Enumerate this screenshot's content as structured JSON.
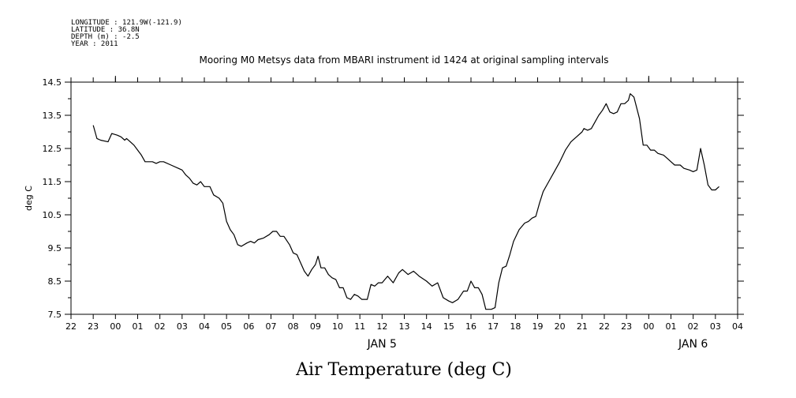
{
  "header": {
    "meta_lines": [
      "LONGITUDE : 121.9W(-121.9)",
      "LATITUDE : 36.8N",
      "DEPTH (m) : -2.5",
      "YEAR : 2011"
    ],
    "title": "Mooring M0 Metsys data from MBARI instrument id 1424 at original sampling intervals"
  },
  "footer": {
    "label": "Air Temperature (deg C)"
  },
  "chart_data": {
    "type": "line",
    "title": "Mooring M0 Metsys data from MBARI instrument id 1424 at original sampling intervals",
    "xlabel": "",
    "ylabel": "deg C",
    "xlim": [
      "2011-01-04T22:00",
      "2011-01-06T04:00"
    ],
    "ylim": [
      7.5,
      14.5
    ],
    "x_tick_labels": [
      "22",
      "23",
      "00",
      "01",
      "02",
      "03",
      "04",
      "05",
      "06",
      "07",
      "08",
      "09",
      "10",
      "11",
      "12",
      "13",
      "14",
      "15",
      "16",
      "17",
      "18",
      "19",
      "20",
      "21",
      "22",
      "23",
      "00",
      "01",
      "02",
      "03",
      "04"
    ],
    "date_labels": [
      "JAN 5",
      "JAN 6"
    ],
    "y_ticks": [
      7.5,
      8.5,
      9.5,
      10.5,
      11.5,
      12.5,
      13.5,
      14.5
    ],
    "y_tick_labels": [
      "7.5",
      "8.5",
      "9.5",
      "10.5",
      "11.5",
      "12.5",
      "13.5",
      "14.5"
    ],
    "grid": false,
    "series": [
      {
        "name": "",
        "points": [
          [
            "2011-01-04T23:00",
            13.2
          ],
          [
            "2011-01-04T23:10",
            12.8
          ],
          [
            "2011-01-04T23:20",
            12.75
          ],
          [
            "2011-01-04T23:40",
            12.7
          ],
          [
            "2011-01-04T23:50",
            12.95
          ],
          [
            "2011-01-05T00:05",
            12.9
          ],
          [
            "2011-01-05T00:15",
            12.85
          ],
          [
            "2011-01-05T00:25",
            12.75
          ],
          [
            "2011-01-05T00:30",
            12.8
          ],
          [
            "2011-01-05T00:40",
            12.7
          ],
          [
            "2011-01-05T00:50",
            12.6
          ],
          [
            "2011-01-05T01:00",
            12.45
          ],
          [
            "2011-01-05T01:10",
            12.3
          ],
          [
            "2011-01-05T01:20",
            12.1
          ],
          [
            "2011-01-05T01:40",
            12.1
          ],
          [
            "2011-01-05T01:50",
            12.05
          ],
          [
            "2011-01-05T02:00",
            12.1
          ],
          [
            "2011-01-05T02:10",
            12.1
          ],
          [
            "2011-01-05T02:30",
            12.0
          ],
          [
            "2011-01-05T02:50",
            11.9
          ],
          [
            "2011-01-05T03:00",
            11.85
          ],
          [
            "2011-01-05T03:10",
            11.7
          ],
          [
            "2011-01-05T03:20",
            11.6
          ],
          [
            "2011-01-05T03:30",
            11.45
          ],
          [
            "2011-01-05T03:40",
            11.4
          ],
          [
            "2011-01-05T03:50",
            11.5
          ],
          [
            "2011-01-05T04:00",
            11.35
          ],
          [
            "2011-01-05T04:15",
            11.35
          ],
          [
            "2011-01-05T04:25",
            11.1
          ],
          [
            "2011-01-05T04:40",
            11.0
          ],
          [
            "2011-01-05T04:50",
            10.85
          ],
          [
            "2011-01-05T05:00",
            10.3
          ],
          [
            "2011-01-05T05:10",
            10.05
          ],
          [
            "2011-01-05T05:20",
            9.9
          ],
          [
            "2011-01-05T05:30",
            9.6
          ],
          [
            "2011-01-05T05:40",
            9.55
          ],
          [
            "2011-01-05T05:55",
            9.65
          ],
          [
            "2011-01-05T06:05",
            9.7
          ],
          [
            "2011-01-05T06:15",
            9.65
          ],
          [
            "2011-01-05T06:25",
            9.75
          ],
          [
            "2011-01-05T06:40",
            9.8
          ],
          [
            "2011-01-05T06:55",
            9.9
          ],
          [
            "2011-01-05T07:05",
            10.0
          ],
          [
            "2011-01-05T07:15",
            10.0
          ],
          [
            "2011-01-05T07:25",
            9.85
          ],
          [
            "2011-01-05T07:35",
            9.85
          ],
          [
            "2011-01-05T07:50",
            9.6
          ],
          [
            "2011-01-05T08:00",
            9.35
          ],
          [
            "2011-01-05T08:10",
            9.3
          ],
          [
            "2011-01-05T08:20",
            9.05
          ],
          [
            "2011-01-05T08:30",
            8.8
          ],
          [
            "2011-01-05T08:40",
            8.65
          ],
          [
            "2011-01-05T08:50",
            8.85
          ],
          [
            "2011-01-05T09:00",
            9.0
          ],
          [
            "2011-01-05T09:07",
            9.25
          ],
          [
            "2011-01-05T09:15",
            8.9
          ],
          [
            "2011-01-05T09:25",
            8.9
          ],
          [
            "2011-01-05T09:35",
            8.7
          ],
          [
            "2011-01-05T09:45",
            8.6
          ],
          [
            "2011-01-05T09:55",
            8.55
          ],
          [
            "2011-01-05T10:05",
            8.3
          ],
          [
            "2011-01-05T10:15",
            8.3
          ],
          [
            "2011-01-05T10:25",
            8.0
          ],
          [
            "2011-01-05T10:35",
            7.95
          ],
          [
            "2011-01-05T10:45",
            8.1
          ],
          [
            "2011-01-05T10:55",
            8.05
          ],
          [
            "2011-01-05T11:05",
            7.95
          ],
          [
            "2011-01-05T11:20",
            7.95
          ],
          [
            "2011-01-05T11:30",
            8.4
          ],
          [
            "2011-01-05T11:40",
            8.35
          ],
          [
            "2011-01-05T11:50",
            8.45
          ],
          [
            "2011-01-05T12:00",
            8.45
          ],
          [
            "2011-01-05T12:15",
            8.65
          ],
          [
            "2011-01-05T12:30",
            8.45
          ],
          [
            "2011-01-05T12:45",
            8.75
          ],
          [
            "2011-01-05T12:55",
            8.85
          ],
          [
            "2011-01-05T13:10",
            8.7
          ],
          [
            "2011-01-05T13:25",
            8.8
          ],
          [
            "2011-01-05T13:40",
            8.65
          ],
          [
            "2011-01-05T14:00",
            8.5
          ],
          [
            "2011-01-05T14:15",
            8.35
          ],
          [
            "2011-01-05T14:30",
            8.45
          ],
          [
            "2011-01-05T14:45",
            8.0
          ],
          [
            "2011-01-05T15:00",
            7.9
          ],
          [
            "2011-01-05T15:10",
            7.85
          ],
          [
            "2011-01-05T15:25",
            7.95
          ],
          [
            "2011-01-05T15:40",
            8.2
          ],
          [
            "2011-01-05T15:50",
            8.2
          ],
          [
            "2011-01-05T16:00",
            8.5
          ],
          [
            "2011-01-05T16:10",
            8.3
          ],
          [
            "2011-01-05T16:20",
            8.3
          ],
          [
            "2011-01-05T16:30",
            8.1
          ],
          [
            "2011-01-05T16:40",
            7.65
          ],
          [
            "2011-01-05T16:55",
            7.65
          ],
          [
            "2011-01-05T17:05",
            7.7
          ],
          [
            "2011-01-05T17:15",
            8.45
          ],
          [
            "2011-01-05T17:25",
            8.9
          ],
          [
            "2011-01-05T17:35",
            8.95
          ],
          [
            "2011-01-05T17:45",
            9.3
          ],
          [
            "2011-01-05T17:55",
            9.7
          ],
          [
            "2011-01-05T18:10",
            10.05
          ],
          [
            "2011-01-05T18:25",
            10.25
          ],
          [
            "2011-01-05T18:35",
            10.3
          ],
          [
            "2011-01-05T18:45",
            10.4
          ],
          [
            "2011-01-05T18:55",
            10.45
          ],
          [
            "2011-01-05T19:05",
            10.85
          ],
          [
            "2011-01-05T19:15",
            11.2
          ],
          [
            "2011-01-05T19:30",
            11.5
          ],
          [
            "2011-01-05T19:45",
            11.8
          ],
          [
            "2011-01-05T20:00",
            12.1
          ],
          [
            "2011-01-05T20:15",
            12.45
          ],
          [
            "2011-01-05T20:30",
            12.7
          ],
          [
            "2011-01-05T20:45",
            12.85
          ],
          [
            "2011-01-05T21:00",
            13.0
          ],
          [
            "2011-01-05T21:05",
            13.1
          ],
          [
            "2011-01-05T21:15",
            13.05
          ],
          [
            "2011-01-05T21:25",
            13.1
          ],
          [
            "2011-01-05T21:35",
            13.3
          ],
          [
            "2011-01-05T21:45",
            13.5
          ],
          [
            "2011-01-05T21:55",
            13.65
          ],
          [
            "2011-01-05T22:05",
            13.85
          ],
          [
            "2011-01-05T22:15",
            13.6
          ],
          [
            "2011-01-05T22:25",
            13.55
          ],
          [
            "2011-01-05T22:35",
            13.6
          ],
          [
            "2011-01-05T22:45",
            13.85
          ],
          [
            "2011-01-05T22:55",
            13.85
          ],
          [
            "2011-01-05T23:05",
            13.95
          ],
          [
            "2011-01-05T23:10",
            14.15
          ],
          [
            "2011-01-05T23:20",
            14.05
          ],
          [
            "2011-01-05T23:35",
            13.4
          ],
          [
            "2011-01-05T23:45",
            12.6
          ],
          [
            "2011-01-05T23:55",
            12.6
          ],
          [
            "2011-01-06T00:05",
            12.45
          ],
          [
            "2011-01-06T00:15",
            12.45
          ],
          [
            "2011-01-06T00:25",
            12.35
          ],
          [
            "2011-01-06T00:40",
            12.3
          ],
          [
            "2011-01-06T00:50",
            12.2
          ],
          [
            "2011-01-06T01:00",
            12.1
          ],
          [
            "2011-01-06T01:10",
            12.0
          ],
          [
            "2011-01-06T01:25",
            12.0
          ],
          [
            "2011-01-06T01:35",
            11.9
          ],
          [
            "2011-01-06T01:50",
            11.85
          ],
          [
            "2011-01-06T02:00",
            11.8
          ],
          [
            "2011-01-06T02:10",
            11.85
          ],
          [
            "2011-01-06T02:20",
            12.5
          ],
          [
            "2011-01-06T02:30",
            12.0
          ],
          [
            "2011-01-06T02:40",
            11.4
          ],
          [
            "2011-01-06T02:50",
            11.25
          ],
          [
            "2011-01-06T03:00",
            11.25
          ],
          [
            "2011-01-06T03:10",
            11.35
          ]
        ]
      }
    ]
  }
}
